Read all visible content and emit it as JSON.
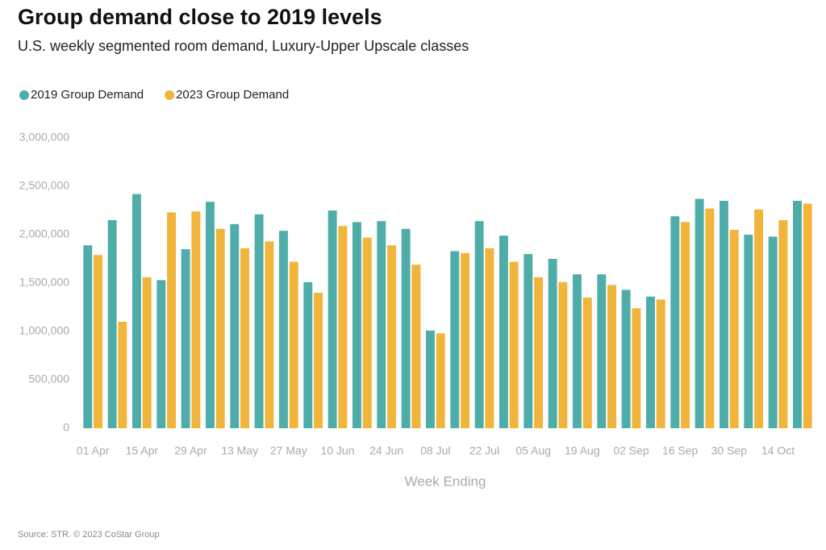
{
  "chart_data": {
    "type": "bar",
    "title": "Group demand close to 2019 levels",
    "subtitle": "U.S. weekly segmented room demand, Luxury-Upper Upscale classes",
    "x_label": "Week Ending",
    "source": "Source: STR. © 2023 CoStar Group",
    "legend": "top-left",
    "categories": [
      "01 Apr",
      null,
      "15 Apr",
      null,
      "29 Apr",
      null,
      "13 May",
      null,
      "27 May",
      null,
      "10 Jun",
      null,
      "24 Jun",
      null,
      "08 Jul",
      null,
      "22 Jul",
      null,
      "05 Aug",
      null,
      "19 Aug",
      null,
      "02 Sep",
      null,
      "16 Sep",
      null,
      "30 Sep",
      null,
      "14 Oct",
      null
    ],
    "series": [
      {
        "name": "2019 Group Demand",
        "color": "#4fada9",
        "values": [
          1890000,
          2150000,
          2420000,
          1530000,
          1850000,
          2340000,
          2110000,
          2210000,
          2040000,
          1510000,
          2250000,
          2130000,
          2140000,
          2060000,
          1010000,
          1830000,
          2140000,
          1990000,
          1800000,
          1750000,
          1590000,
          1590000,
          1430000,
          1360000,
          2190000,
          2370000,
          2350000,
          2000000,
          1980000,
          2350000
        ]
      },
      {
        "name": "2023 Group Demand",
        "color": "#f0b53a",
        "values": [
          1790000,
          1100000,
          1560000,
          2230000,
          2240000,
          2060000,
          1860000,
          1930000,
          1720000,
          1400000,
          2090000,
          1970000,
          1890000,
          1690000,
          980000,
          1810000,
          1860000,
          1720000,
          1560000,
          1510000,
          1350000,
          1480000,
          1240000,
          1330000,
          2130000,
          2270000,
          2050000,
          2260000,
          2150000,
          2320000
        ]
      }
    ],
    "ylim": [
      0,
      3000000
    ],
    "yticks": [
      0,
      {
        "value": 500000,
        "label": "500,000"
      },
      {
        "value": 1000000,
        "label": "1,000,000"
      },
      {
        "value": 1500000,
        "label": "1,500,000"
      },
      {
        "value": 2000000,
        "label": "2,000,000"
      },
      {
        "value": 2500000,
        "label": "2,500,000"
      },
      {
        "value": 3000000,
        "label": "3,000,000"
      }
    ]
  }
}
